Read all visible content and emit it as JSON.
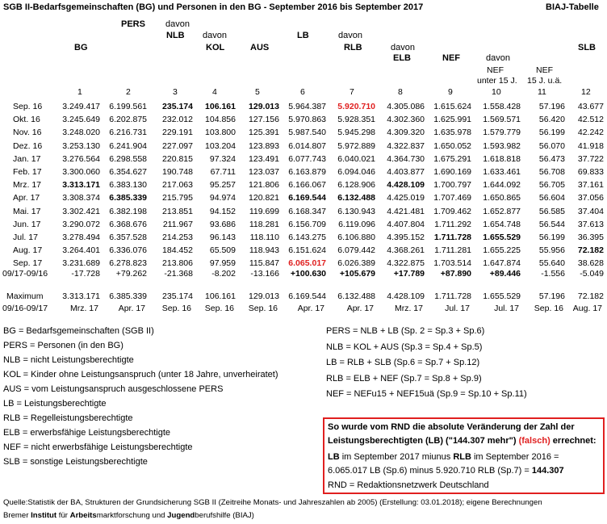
{
  "title": "SGB II-Bedarfsgemeinschaften (BG) und Personen in den BG - September 2016 bis September 2017",
  "tag": "BIAJ-Tabelle",
  "headers": {
    "pers": "PERS",
    "davon1": "davon",
    "nlb": "NLB",
    "bg": "BG",
    "davon2": "davon",
    "kol": "KOL",
    "aus": "AUS",
    "lb": "LB",
    "davon3": "davon",
    "rlb": "RLB",
    "davon4": "davon",
    "elb": "ELB",
    "nef": "NEF",
    "davon5": "davon",
    "nef_u15_a": "NEF",
    "nef_u15_b": "unter 15 J.",
    "nef_15ua_a": "NEF",
    "nef_15ua_b": "15 J. u.ä.",
    "slb": "SLB"
  },
  "colnums": [
    "1",
    "2",
    "3",
    "4",
    "5",
    "6",
    "7",
    "8",
    "9",
    "10",
    "11",
    "12"
  ],
  "rows": [
    {
      "label": "Sep. 16",
      "v": [
        "3.249.417",
        "6.199.561",
        "235.174",
        "106.161",
        "129.013",
        "5.964.387",
        "5.920.710",
        "4.305.086",
        "1.615.624",
        "1.558.428",
        "57.196",
        "43.677"
      ]
    },
    {
      "label": "Okt. 16",
      "v": [
        "3.245.649",
        "6.202.875",
        "232.012",
        "104.856",
        "127.156",
        "5.970.863",
        "5.928.351",
        "4.302.360",
        "1.625.991",
        "1.569.571",
        "56.420",
        "42.512"
      ]
    },
    {
      "label": "Nov. 16",
      "v": [
        "3.248.020",
        "6.216.731",
        "229.191",
        "103.800",
        "125.391",
        "5.987.540",
        "5.945.298",
        "4.309.320",
        "1.635.978",
        "1.579.779",
        "56.199",
        "42.242"
      ]
    },
    {
      "label": "Dez. 16",
      "v": [
        "3.253.130",
        "6.241.904",
        "227.097",
        "103.204",
        "123.893",
        "6.014.807",
        "5.972.889",
        "4.322.837",
        "1.650.052",
        "1.593.982",
        "56.070",
        "41.918"
      ]
    },
    {
      "label": "Jan. 17",
      "v": [
        "3.276.564",
        "6.298.558",
        "220.815",
        "97.324",
        "123.491",
        "6.077.743",
        "6.040.021",
        "4.364.730",
        "1.675.291",
        "1.618.818",
        "56.473",
        "37.722"
      ]
    },
    {
      "label": "Feb. 17",
      "v": [
        "3.300.060",
        "6.354.627",
        "190.748",
        "67.711",
        "123.037",
        "6.163.879",
        "6.094.046",
        "4.403.877",
        "1.690.169",
        "1.633.461",
        "56.708",
        "69.833"
      ]
    },
    {
      "label": "Mrz. 17",
      "v": [
        "3.313.171",
        "6.383.130",
        "217.063",
        "95.257",
        "121.806",
        "6.166.067",
        "6.128.906",
        "4.428.109",
        "1.700.797",
        "1.644.092",
        "56.705",
        "37.161"
      ]
    },
    {
      "label": "Apr. 17",
      "v": [
        "3.308.374",
        "6.385.339",
        "215.795",
        "94.974",
        "120.821",
        "6.169.544",
        "6.132.488",
        "4.425.019",
        "1.707.469",
        "1.650.865",
        "56.604",
        "37.056"
      ]
    },
    {
      "label": "Mai. 17",
      "v": [
        "3.302.421",
        "6.382.198",
        "213.851",
        "94.152",
        "119.699",
        "6.168.347",
        "6.130.943",
        "4.421.481",
        "1.709.462",
        "1.652.877",
        "56.585",
        "37.404"
      ]
    },
    {
      "label": "Jun. 17",
      "v": [
        "3.290.072",
        "6.368.676",
        "211.967",
        "93.686",
        "118.281",
        "6.156.709",
        "6.119.096",
        "4.407.804",
        "1.711.292",
        "1.654.748",
        "56.544",
        "37.613"
      ]
    },
    {
      "label": "Jul. 17",
      "v": [
        "3.278.494",
        "6.357.528",
        "214.253",
        "96.143",
        "118.110",
        "6.143.275",
        "6.106.880",
        "4.395.152",
        "1.711.728",
        "1.655.529",
        "56.199",
        "36.395"
      ]
    },
    {
      "label": "Aug. 17",
      "v": [
        "3.264.401",
        "6.336.076",
        "184.452",
        "65.509",
        "118.943",
        "6.151.624",
        "6.079.442",
        "4.368.261",
        "1.711.281",
        "1.655.225",
        "55.956",
        "72.182"
      ]
    },
    {
      "label": "Sep. 17",
      "v": [
        "3.231.689",
        "6.278.823",
        "213.806",
        "97.959",
        "115.847",
        "6.065.017",
        "6.026.389",
        "4.322.875",
        "1.703.514",
        "1.647.874",
        "55.640",
        "38.628"
      ]
    }
  ],
  "diff": {
    "label": "09/17-09/16",
    "v": [
      "-17.728",
      "+79.262",
      "-21.368",
      "-8.202",
      "-13.166",
      "+100.630",
      "+105.679",
      "+17.789",
      "+87.890",
      "+89.446",
      "-1.556",
      "-5.049"
    ]
  },
  "max_label_1": "Maximum",
  "max_label_2": "09/16-09/17",
  "max_values": [
    "3.313.171",
    "6.385.339",
    "235.174",
    "106.161",
    "129.013",
    "6.169.544",
    "6.132.488",
    "4.428.109",
    "1.711.728",
    "1.655.529",
    "57.196",
    "72.182"
  ],
  "max_months": [
    "Mrz. 17",
    "Apr. 17",
    "Sep. 16",
    "Sep. 16",
    "Sep. 16",
    "Apr. 17",
    "Apr. 17",
    "Mrz. 17",
    "Jul. 17",
    "Jul. 17",
    "Sep. 16",
    "Aug. 17"
  ],
  "legend_left": [
    "BG = Bedarfsgemeinschaften (SGB II)",
    "PERS = Personen (in den BG)",
    "NLB = nicht Leistungsberechtigte",
    "KOL = Kinder ohne Leistungsanspruch (unter 18 Jahre, unverheiratet)",
    "AUS = vom Leistungsanspruch ausgeschlossene PERS",
    "LB = Leistungsberechtigte",
    "RLB = Regelleistungsberechtigte",
    "ELB = erwerbsfähige Leistungsberechtigte",
    "NEF = nicht erwerbsfähige Leistungsberechtigte",
    "SLB = sonstige Leistungsberechtigte"
  ],
  "legend_right": [
    "PERS = NLB + LB (Sp. 2 = Sp.3 + Sp.6)",
    "NLB = KOL + AUS (Sp.3 = Sp.4 + Sp.5)",
    "LB = RLB + SLB (Sp.6 = Sp.7 + Sp.12)",
    "RLB = ELB + NEF (Sp.7 = Sp.8 + Sp.9)",
    "NEF = NEFu15 + NEF15uä (Sp.9 = Sp.10 + Sp.11)"
  ],
  "redbox": {
    "l1": "So wurde vom RND die absolute Veränderung der Zahl der",
    "l2a": "Leistungsberechtigten (LB) (\"144.307 mehr\")",
    "l2b": "(falsch)",
    "l2c": "errechnet:",
    "l3a": "LB",
    "l3b": " im September 2017 miunus ",
    "l3c": "RLB",
    "l3d": " im September 2016 =",
    "l4a": "6.065.017 LB (Sp.6) minus 5.920.710 RLB (Sp.7) = ",
    "l4b": "144.307",
    "l5": "RND = Redaktionsnetzwerk Deutschland"
  },
  "source": "Quelle:Statistik der BA, Strukturen der Grundsicherung SGB II (Zeitreihe Monats- und Jahreszahlen ab 2005) (Erstellung: 03.01.2018); eigene Berechnungen",
  "org_a": "Bremer ",
  "org_b": "Institut",
  "org_c": " für ",
  "org_d": "Arbeits",
  "org_e": "marktforschung und ",
  "org_f": "Jugend",
  "org_g": "berufshilfe (BIAJ)"
}
